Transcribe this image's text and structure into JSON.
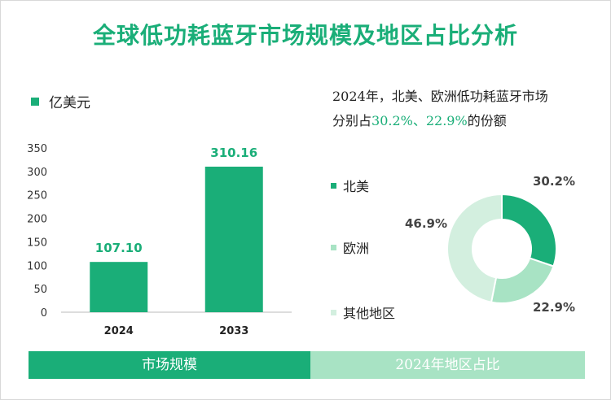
{
  "title": "全球低功耗蓝牙市场规模及地区占比分析",
  "unit_label": "亿美元",
  "note": {
    "line1": "2024年，北美、欧洲低功耗蓝牙市场",
    "prefix": "分别占",
    "v1": "30.2%",
    "sep": "、",
    "v2": "22.9%",
    "suffix": "的份额"
  },
  "footer": {
    "left": "市场规模",
    "right": "2024年地区占比"
  },
  "colors": {
    "bar": "#1aae78",
    "na": "#1aae78",
    "eu": "#a8e3c4",
    "other": "#d3efdf",
    "label_green": "#1aae78",
    "label_dark": "#444444"
  },
  "chart_data": [
    {
      "type": "bar",
      "title": "市场规模",
      "ylabel": "亿美元",
      "categories": [
        "2024",
        "2033"
      ],
      "values": [
        107.1,
        310.16
      ],
      "value_labels": [
        "107.10",
        "310.16"
      ],
      "ylim": [
        0,
        350
      ],
      "yticks": [
        0,
        50,
        100,
        150,
        200,
        250,
        300,
        350
      ],
      "grid": false
    },
    {
      "type": "pie",
      "title": "2024年地区占比",
      "labels": [
        "北美",
        "欧洲",
        "其他地区"
      ],
      "values": [
        30.2,
        22.9,
        46.9
      ],
      "value_labels": [
        "30.2%",
        "22.9%",
        "46.9%"
      ],
      "donut": true
    }
  ]
}
